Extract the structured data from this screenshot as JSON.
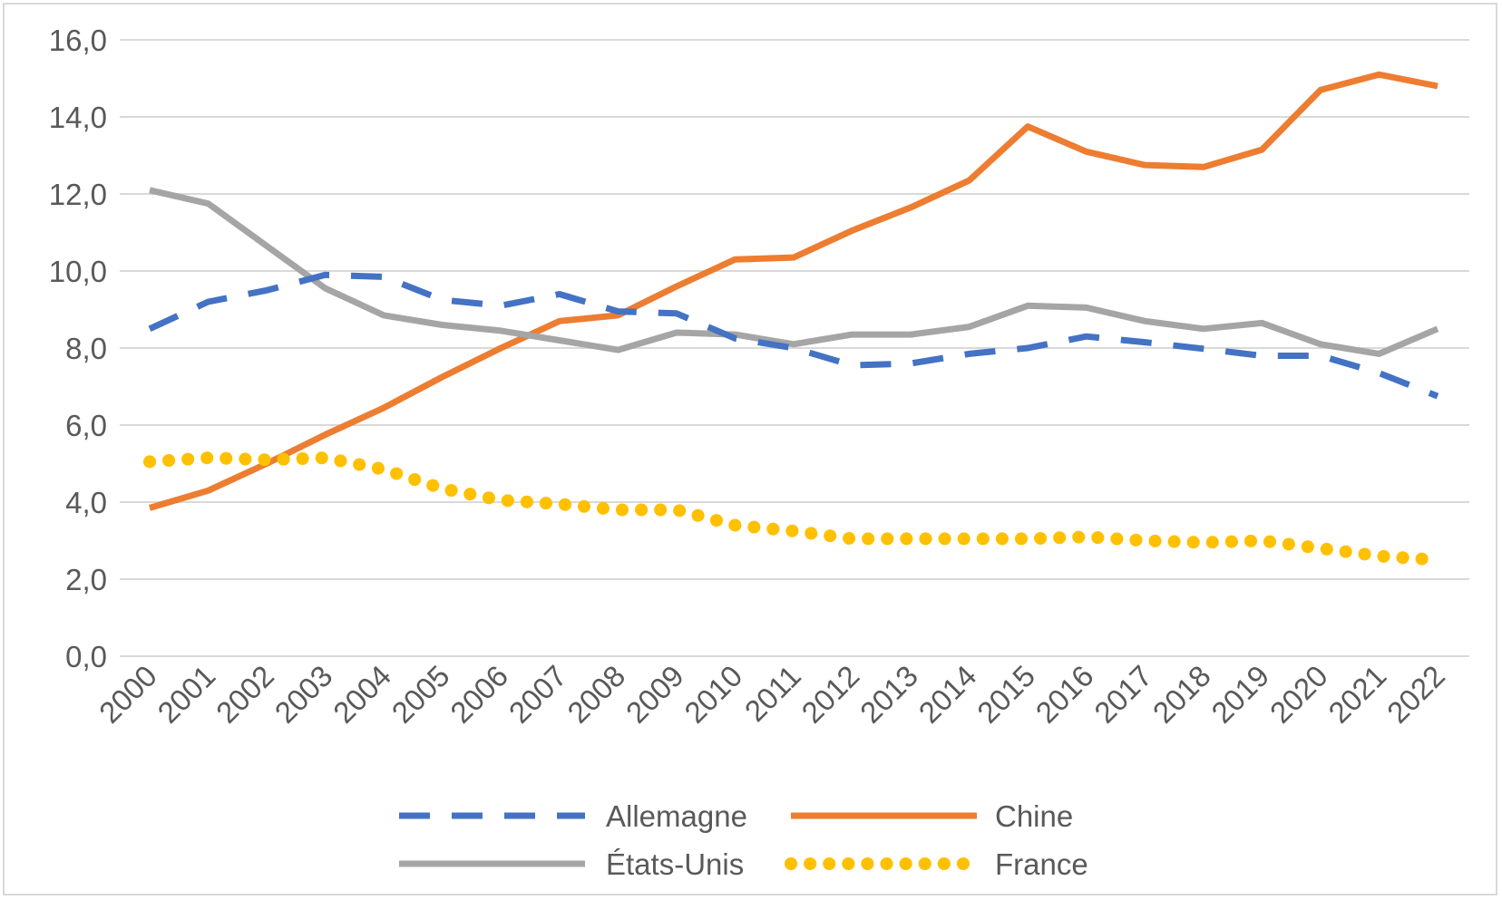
{
  "chart_data": {
    "type": "line",
    "title": "",
    "xlabel": "",
    "ylabel": "",
    "x": [
      "2000",
      "2001",
      "2002",
      "2003",
      "2004",
      "2005",
      "2006",
      "2007",
      "2008",
      "2009",
      "2010",
      "2011",
      "2012",
      "2013",
      "2014",
      "2015",
      "2016",
      "2017",
      "2018",
      "2019",
      "2020",
      "2021",
      "2022"
    ],
    "y_ticks": [
      "0,0",
      "2,0",
      "4,0",
      "6,0",
      "8,0",
      "10,0",
      "12,0",
      "14,0",
      "16,0"
    ],
    "ylim": [
      0,
      16
    ],
    "grid": true,
    "legend_position": "bottom",
    "series": [
      {
        "name": "Allemagne",
        "color": "#4472c4",
        "style": "dashed",
        "values": [
          8.5,
          9.2,
          9.5,
          9.9,
          9.85,
          9.25,
          9.1,
          9.4,
          8.95,
          8.9,
          8.25,
          8.0,
          7.55,
          7.6,
          7.85,
          8.0,
          8.3,
          8.15,
          7.98,
          7.8,
          7.8,
          7.35,
          6.75
        ]
      },
      {
        "name": "Chine",
        "color": "#ed7d31",
        "style": "solid",
        "values": [
          3.85,
          4.3,
          5.0,
          5.75,
          6.45,
          7.25,
          8.0,
          8.7,
          8.85,
          9.6,
          10.3,
          10.35,
          11.05,
          11.65,
          12.35,
          13.75,
          13.1,
          12.75,
          12.7,
          13.15,
          14.7,
          15.1,
          14.8
        ]
      },
      {
        "name": "États-Unis",
        "color": "#a5a5a5",
        "style": "solid",
        "values": [
          12.1,
          11.75,
          10.65,
          9.55,
          8.85,
          8.6,
          8.45,
          8.2,
          7.95,
          8.4,
          8.35,
          8.1,
          8.35,
          8.35,
          8.55,
          9.1,
          9.05,
          8.7,
          8.5,
          8.65,
          8.1,
          7.85,
          8.5
        ]
      },
      {
        "name": "France",
        "color": "#ffc000",
        "style": "dotted",
        "values": [
          5.05,
          5.15,
          5.1,
          5.15,
          4.85,
          4.35,
          4.05,
          3.95,
          3.8,
          3.8,
          3.4,
          3.25,
          3.05,
          3.05,
          3.05,
          3.05,
          3.1,
          3.0,
          2.95,
          3.0,
          2.8,
          2.6,
          2.5
        ]
      }
    ]
  }
}
